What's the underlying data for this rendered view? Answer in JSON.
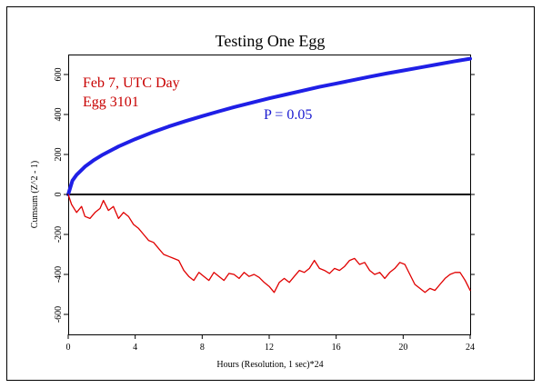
{
  "colors": {
    "background": "#ffffff",
    "border": "#000000",
    "probability_curve": "#1f1fe6",
    "cumsum_trace": "#e00000",
    "annotation_red": "#c80000",
    "annotation_blue": "#1a1ad0"
  },
  "chart_data": {
    "type": "line",
    "title": "Testing One Egg",
    "xlabel": "Hours (Resolution, 1 sec)*24",
    "ylabel": "Cumsum (Z^2 - 1)",
    "xlim": [
      0,
      24
    ],
    "ylim": [
      -700,
      700
    ],
    "x_ticks": [
      0,
      4,
      8,
      12,
      16,
      20,
      24
    ],
    "y_ticks": [
      -600,
      -400,
      -200,
      0,
      200,
      400,
      600
    ],
    "x_tick_labels": [
      "0",
      "4",
      "8",
      "12",
      "16",
      "20",
      "24"
    ],
    "y_tick_labels": [
      "-600",
      "-400",
      "-200",
      "0",
      "200",
      "400",
      "600"
    ],
    "grid": false,
    "annotations": {
      "date": "Feb 7, UTC Day",
      "egg": "Egg 3101",
      "p_label": "P = 0.05"
    },
    "reference_line": {
      "y": 0
    },
    "series": [
      {
        "color": "#1f1fe6",
        "x": [
          0,
          0.25,
          0.5,
          1,
          1.5,
          2,
          3,
          4,
          5,
          6,
          7,
          8,
          9,
          10,
          11,
          12,
          13,
          14,
          15,
          16,
          17,
          18,
          19,
          20,
          21,
          22,
          23,
          24
        ],
        "y": [
          0,
          69,
          98,
          139,
          170,
          196,
          240,
          277,
          310,
          340,
          367,
          392,
          416,
          439,
          460,
          481,
          500,
          519,
          538,
          555,
          572,
          589,
          605,
          620,
          635,
          650,
          665,
          679
        ]
      },
      {
        "color": "#e00000",
        "x": [
          0,
          0.2,
          0.5,
          0.8,
          1.0,
          1.3,
          1.6,
          1.9,
          2.1,
          2.4,
          2.7,
          3.0,
          3.3,
          3.6,
          3.9,
          4.2,
          4.5,
          4.8,
          5.1,
          5.4,
          5.7,
          6.0,
          6.3,
          6.6,
          6.9,
          7.2,
          7.5,
          7.8,
          8.1,
          8.4,
          8.7,
          9.0,
          9.3,
          9.6,
          9.9,
          10.2,
          10.5,
          10.8,
          11.1,
          11.4,
          11.7,
          12.0,
          12.3,
          12.6,
          12.9,
          13.2,
          13.5,
          13.8,
          14.1,
          14.4,
          14.7,
          15.0,
          15.3,
          15.6,
          15.9,
          16.2,
          16.5,
          16.8,
          17.1,
          17.4,
          17.7,
          18.0,
          18.3,
          18.6,
          18.9,
          19.2,
          19.5,
          19.8,
          20.1,
          20.4,
          20.7,
          21.0,
          21.3,
          21.6,
          21.9,
          22.2,
          22.5,
          22.8,
          23.1,
          23.4,
          23.7,
          24.0
        ],
        "y": [
          0,
          -50,
          -90,
          -60,
          -110,
          -120,
          -90,
          -70,
          -30,
          -80,
          -60,
          -120,
          -90,
          -110,
          -150,
          -170,
          -200,
          -230,
          -240,
          -270,
          -300,
          -310,
          -320,
          -330,
          -380,
          -410,
          -430,
          -390,
          -410,
          -430,
          -390,
          -410,
          -430,
          -395,
          -400,
          -420,
          -390,
          -410,
          -400,
          -415,
          -440,
          -460,
          -490,
          -440,
          -420,
          -440,
          -410,
          -380,
          -390,
          -370,
          -330,
          -370,
          -380,
          -395,
          -370,
          -380,
          -360,
          -330,
          -320,
          -350,
          -340,
          -380,
          -400,
          -390,
          -420,
          -390,
          -370,
          -340,
          -350,
          -400,
          -450,
          -470,
          -490,
          -470,
          -480,
          -450,
          -420,
          -400,
          -390,
          -390,
          -430,
          -480
        ]
      }
    ]
  }
}
